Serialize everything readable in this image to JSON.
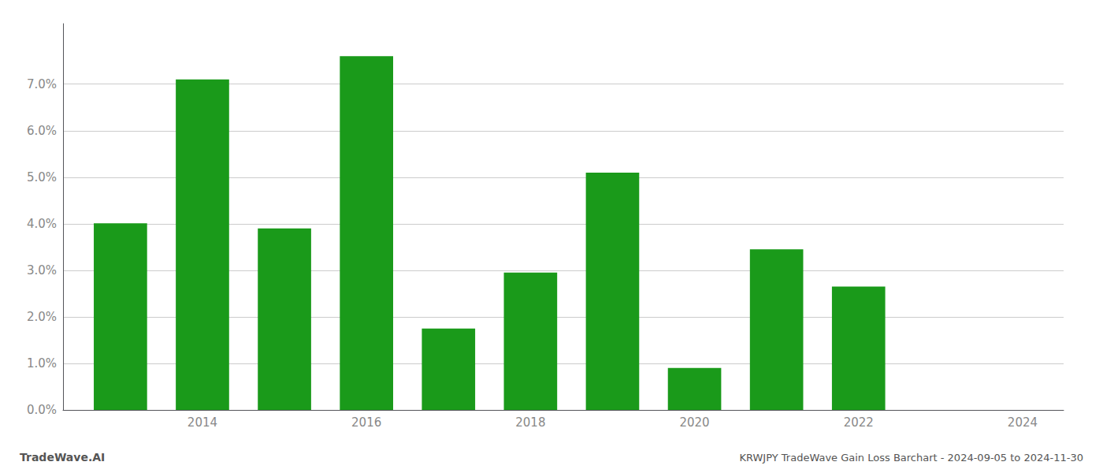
{
  "chart_data": {
    "type": "bar",
    "title": "KRWJPY TradeWave Gain Loss Barchart - 2024-09-05 to 2024-11-30",
    "annotations": [
      "TradeWave.AI"
    ],
    "x": [
      2013,
      2014,
      2015,
      2016,
      2017,
      2018,
      2019,
      2020,
      2021,
      2022,
      2023
    ],
    "values": [
      0.0401,
      0.071,
      0.039,
      0.076,
      0.0175,
      0.0295,
      0.051,
      0.009,
      0.0345,
      0.0265,
      0.0
    ],
    "color": "#1a9a1a",
    "xlim": [
      2012.3,
      2024.5
    ],
    "xticks": [
      2014,
      2016,
      2018,
      2020,
      2022,
      2024
    ],
    "ylim": [
      0,
      0.083
    ],
    "yticks": [
      {
        "value": 0.0,
        "label": "0.0%"
      },
      {
        "value": 0.01,
        "label": "1.0%"
      },
      {
        "value": 0.02,
        "label": "2.0%"
      },
      {
        "value": 0.03,
        "label": "3.0%"
      },
      {
        "value": 0.04,
        "label": "4.0%"
      },
      {
        "value": 0.05,
        "label": "5.0%"
      },
      {
        "value": 0.06,
        "label": "6.0%"
      },
      {
        "value": 0.07,
        "label": "7.0%"
      }
    ],
    "grid": true
  }
}
